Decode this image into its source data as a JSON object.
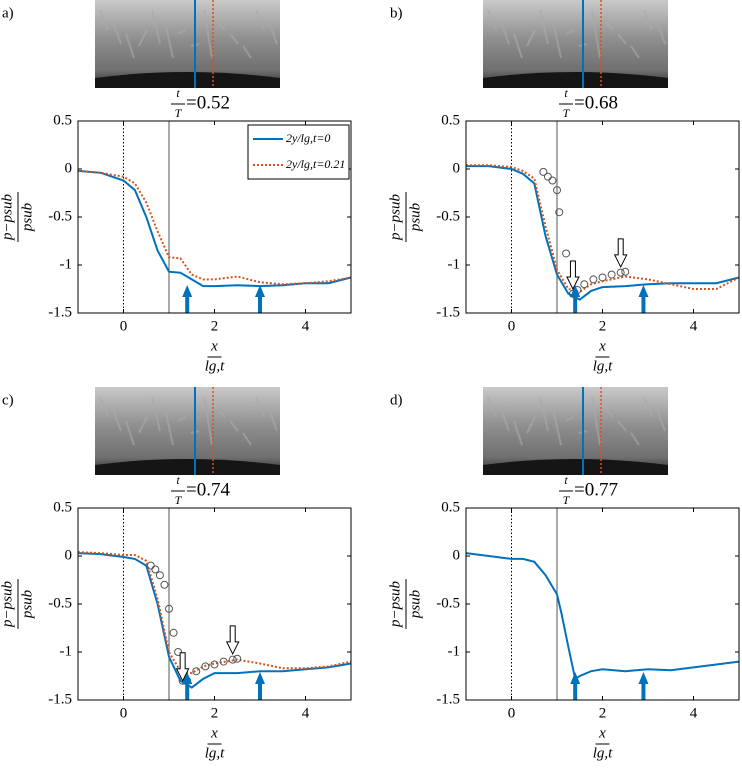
{
  "chart_data": [
    {
      "type": "line",
      "label": "a)",
      "title": {
        "num": "t",
        "den": "T",
        "text": "=0.52"
      },
      "xlabel": {
        "num": "x",
        "den": "lg,t"
      },
      "ylabel": {
        "num": "p−psub",
        "den": "psub"
      },
      "xlim": [
        -1,
        5
      ],
      "ylim": [
        -1.5,
        0.5
      ],
      "xticks": [
        0,
        2,
        4
      ],
      "yticks": [
        0.5,
        0,
        -0.5,
        -1,
        -1.5
      ],
      "legend": "upper right",
      "vlines": [
        {
          "x": 0,
          "style": "dotted"
        },
        {
          "x": 1,
          "style": "solid"
        }
      ],
      "x": [
        -1,
        -0.5,
        0,
        0.25,
        0.5,
        0.75,
        1,
        1.25,
        1.5,
        1.75,
        2,
        2.5,
        3,
        3.5,
        4,
        4.5,
        5
      ],
      "series": [
        {
          "name": "2y/lg,t=0",
          "color": "#0072bd",
          "style": "solid",
          "values": [
            -0.02,
            -0.04,
            -0.12,
            -0.22,
            -0.5,
            -0.85,
            -1.07,
            -1.08,
            -1.15,
            -1.22,
            -1.22,
            -1.21,
            -1.22,
            -1.21,
            -1.19,
            -1.19,
            -1.13
          ]
        },
        {
          "name": "2y/lg,t=0.21",
          "color": "#d95319",
          "style": "dotted",
          "values": [
            -0.02,
            -0.04,
            -0.08,
            -0.15,
            -0.35,
            -0.65,
            -0.92,
            -0.93,
            -1.1,
            -1.15,
            -1.15,
            -1.12,
            -1.18,
            -1.2,
            -1.19,
            -1.17,
            -1.13
          ]
        }
      ],
      "blue_arrows": [
        1.4,
        3.0
      ]
    },
    {
      "type": "line",
      "label": "b)",
      "title": {
        "num": "t",
        "den": "T",
        "text": "=0.68"
      },
      "xlabel": {
        "num": "x",
        "den": "lg,t"
      },
      "ylabel": {
        "num": "p−psub",
        "den": "psub"
      },
      "xlim": [
        -1,
        5
      ],
      "ylim": [
        -1.5,
        0.5
      ],
      "xticks": [
        0,
        2,
        4
      ],
      "yticks": [
        0.5,
        0,
        -0.5,
        -1,
        -1.5
      ],
      "vlines": [
        {
          "x": 0,
          "style": "dotted"
        },
        {
          "x": 1,
          "style": "solid"
        }
      ],
      "x": [
        -1,
        -0.5,
        0,
        0.25,
        0.5,
        0.75,
        1,
        1.25,
        1.5,
        1.75,
        2,
        2.5,
        3,
        3.5,
        4,
        4.5,
        5
      ],
      "series": [
        {
          "color": "#0072bd",
          "style": "solid",
          "values": [
            0.03,
            0.03,
            0.0,
            -0.05,
            -0.15,
            -0.7,
            -1.1,
            -1.3,
            -1.36,
            -1.27,
            -1.23,
            -1.22,
            -1.2,
            -1.19,
            -1.19,
            -1.19,
            -1.13
          ]
        },
        {
          "color": "#d95319",
          "style": "dotted",
          "values": [
            0.04,
            0.04,
            0.02,
            -0.02,
            -0.1,
            -0.6,
            -1.05,
            -1.25,
            -1.28,
            -1.2,
            -1.17,
            -1.12,
            -1.15,
            -1.2,
            -1.25,
            -1.25,
            -1.13
          ]
        }
      ],
      "markers": {
        "x": [
          0.7,
          0.8,
          0.9,
          1.0,
          1.05,
          1.2,
          1.35,
          1.45,
          1.6,
          1.8,
          2.0,
          2.2,
          2.4,
          2.5
        ],
        "y": [
          -0.03,
          -0.08,
          -0.12,
          -0.22,
          -0.45,
          -0.88,
          -1.3,
          -1.26,
          -1.2,
          -1.15,
          -1.13,
          -1.1,
          -1.08,
          -1.07
        ]
      },
      "blue_arrows": [
        1.4,
        2.9
      ],
      "open_arrows": [
        {
          "x": 1.35,
          "y": -1.25
        },
        {
          "x": 2.4,
          "y": -1.02
        }
      ]
    },
    {
      "type": "line",
      "label": "c)",
      "title": {
        "num": "t",
        "den": "T",
        "text": "=0.74"
      },
      "xlabel": {
        "num": "x",
        "den": "lg,t"
      },
      "ylabel": {
        "num": "p−psub",
        "den": "psub"
      },
      "xlim": [
        -1,
        5
      ],
      "ylim": [
        -1.5,
        0.5
      ],
      "xticks": [
        0,
        2,
        4
      ],
      "yticks": [
        0.5,
        0,
        -0.5,
        -1,
        -1.5
      ],
      "vlines": [
        {
          "x": 0,
          "style": "dotted"
        },
        {
          "x": 1,
          "style": "solid"
        }
      ],
      "x": [
        -1,
        -0.5,
        0,
        0.25,
        0.5,
        0.75,
        1,
        1.25,
        1.5,
        1.75,
        2,
        2.5,
        3,
        3.5,
        4,
        4.5,
        5
      ],
      "series": [
        {
          "color": "#0072bd",
          "style": "solid",
          "values": [
            0.03,
            0.02,
            -0.01,
            -0.03,
            -0.1,
            -0.5,
            -1.05,
            -1.3,
            -1.37,
            -1.28,
            -1.22,
            -1.22,
            -1.2,
            -1.2,
            -1.18,
            -1.16,
            -1.12
          ]
        },
        {
          "color": "#d95319",
          "style": "dotted",
          "values": [
            0.04,
            0.03,
            0.01,
            0.01,
            -0.05,
            -0.45,
            -1.0,
            -1.2,
            -1.22,
            -1.15,
            -1.12,
            -1.08,
            -1.12,
            -1.17,
            -1.17,
            -1.15,
            -1.1
          ]
        }
      ],
      "markers": {
        "x": [
          0.6,
          0.7,
          0.8,
          0.9,
          1.0,
          1.1,
          1.2,
          1.3,
          1.4,
          1.6,
          1.8,
          2.0,
          2.2,
          2.4,
          2.5
        ],
        "y": [
          -0.1,
          -0.14,
          -0.2,
          -0.3,
          -0.55,
          -0.8,
          -1.0,
          -1.3,
          -1.3,
          -1.2,
          -1.15,
          -1.13,
          -1.1,
          -1.08,
          -1.07
        ]
      },
      "blue_arrows": [
        1.4,
        3.0
      ],
      "open_arrows": [
        {
          "x": 1.3,
          "y": -1.3
        },
        {
          "x": 2.4,
          "y": -1.02
        }
      ]
    },
    {
      "type": "line",
      "label": "d)",
      "title": {
        "num": "t",
        "den": "T",
        "text": "=0.77"
      },
      "xlabel": {
        "num": "x",
        "den": "lg,t"
      },
      "ylabel": {
        "num": "p−psub",
        "den": "psub"
      },
      "xlim": [
        -1,
        5
      ],
      "ylim": [
        -1.5,
        0.5
      ],
      "xticks": [
        0,
        2,
        4
      ],
      "yticks": [
        0.5,
        0,
        -0.5,
        -1,
        -1.5
      ],
      "vlines": [
        {
          "x": 0,
          "style": "dotted"
        },
        {
          "x": 1,
          "style": "solid"
        }
      ],
      "x": [
        -1,
        -0.5,
        0,
        0.25,
        0.5,
        0.75,
        1,
        1.1,
        1.25,
        1.4,
        1.5,
        1.75,
        2,
        2.5,
        3,
        3.5,
        4,
        4.5,
        5
      ],
      "series": [
        {
          "color": "#0072bd",
          "style": "solid",
          "values": [
            0.03,
            0.0,
            -0.03,
            -0.03,
            -0.06,
            -0.2,
            -0.4,
            -0.6,
            -0.95,
            -1.28,
            -1.25,
            -1.2,
            -1.18,
            -1.2,
            -1.18,
            -1.19,
            -1.16,
            -1.13,
            -1.1
          ]
        }
      ],
      "blue_arrows": [
        1.4,
        2.9
      ]
    }
  ]
}
